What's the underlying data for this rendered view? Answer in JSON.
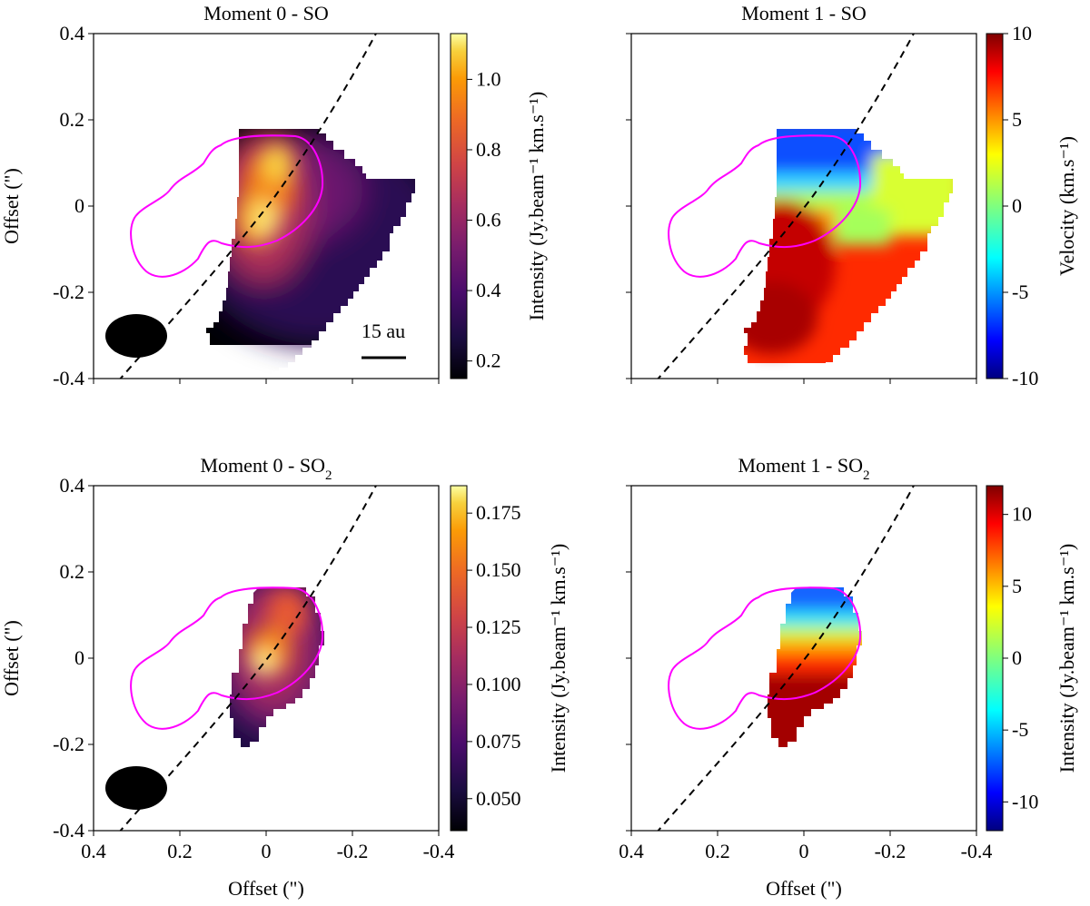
{
  "chart_data": [
    {
      "type": "heatmap",
      "title": "Moment 0 - SO",
      "xlabel": "",
      "ylabel": "Offset (\")",
      "xlim": [
        0.4,
        -0.4
      ],
      "ylim": [
        -0.4,
        0.4
      ],
      "yticks": [
        "-0.4",
        "-0.2",
        "0",
        "0.2",
        "0.4"
      ],
      "colormap": "inferno",
      "colorbar": {
        "label": "Intensity (Jy.beam⁻¹ km.s⁻¹)",
        "range": [
          0.15,
          1.13
        ],
        "ticks": [
          "0.2",
          "0.4",
          "0.6",
          "0.8",
          "1.0"
        ],
        "tick_values": [
          0.2,
          0.4,
          0.6,
          0.8,
          1.0
        ]
      },
      "emission": {
        "peaks": [
          {
            "x": -0.04,
            "y": 0.07,
            "value": 1.12
          },
          {
            "x": 0.04,
            "y": -0.05,
            "value": 1.05
          }
        ],
        "extent_x": [
          0.2,
          -0.34
        ],
        "extent_y": [
          -0.29,
          0.18
        ]
      },
      "beam": {
        "x": 0.3,
        "y": -0.3
      },
      "scale_bar": "15 au",
      "contour_color": "#ff00ff",
      "has_dashed_curve": true
    },
    {
      "type": "heatmap",
      "title": "Moment 1 - SO",
      "xlabel": "",
      "ylabel": "",
      "xlim": [
        0.4,
        -0.4
      ],
      "ylim": [
        -0.4,
        0.4
      ],
      "colormap": "jet",
      "colorbar": {
        "label": "Velocity (km.s⁻¹)",
        "range": [
          -10,
          10
        ],
        "ticks": [
          "-10",
          "-5",
          "0",
          "5",
          "10"
        ],
        "tick_values": [
          -10,
          -5,
          0,
          5,
          10
        ]
      },
      "velocity": {
        "north_value": -10,
        "south_value": 10,
        "east_limb_value": 2,
        "extent_x": [
          0.2,
          -0.34
        ],
        "extent_y": [
          -0.29,
          0.18
        ]
      },
      "contour_color": "#ff00ff",
      "has_dashed_curve": true
    },
    {
      "type": "heatmap",
      "title": "Moment 0 - SO2",
      "xlabel": "Offset (\")",
      "ylabel": "Offset (\")",
      "xlim": [
        0.4,
        -0.4
      ],
      "ylim": [
        -0.4,
        0.4
      ],
      "xticks": [
        "0.4",
        "0.2",
        "0",
        "-0.2",
        "-0.4"
      ],
      "yticks": [
        "-0.4",
        "-0.2",
        "0",
        "0.2",
        "0.4"
      ],
      "colormap": "inferno",
      "colorbar": {
        "label": "Intensity (Jy.beam⁻¹ km.s⁻¹)",
        "range": [
          0.036,
          0.187
        ],
        "ticks": [
          "0.050",
          "0.075",
          "0.100",
          "0.125",
          "0.150",
          "0.175"
        ],
        "tick_values": [
          0.05,
          0.075,
          0.1,
          0.125,
          0.15,
          0.175
        ]
      },
      "emission": {
        "peaks": [
          {
            "x": 0.0,
            "y": -0.05,
            "value": 0.185
          },
          {
            "x": -0.03,
            "y": 0.08,
            "value": 0.15
          }
        ],
        "extent_x": [
          0.11,
          -0.13
        ],
        "extent_y": [
          -0.18,
          0.15
        ]
      },
      "beam": {
        "x": 0.3,
        "y": -0.3
      },
      "contour_color": "#ff00ff",
      "has_dashed_curve": true
    },
    {
      "type": "heatmap",
      "title": "Moment 1 - SO2",
      "xlabel": "Offset (\")",
      "ylabel": "",
      "xlim": [
        0.4,
        -0.4
      ],
      "ylim": [
        -0.4,
        0.4
      ],
      "xticks": [
        "0.4",
        "0.2",
        "0",
        "-0.2",
        "-0.4"
      ],
      "colormap": "jet",
      "colorbar": {
        "label": "Intensity (Jy.beam⁻¹ km.s⁻¹)",
        "range": [
          -12,
          12
        ],
        "ticks": [
          "-10",
          "-5",
          "0",
          "5",
          "10"
        ],
        "tick_values": [
          -10,
          -5,
          0,
          5,
          10
        ]
      },
      "velocity": {
        "north_value": -10,
        "south_value": 12,
        "extent_x": [
          0.1,
          -0.13
        ],
        "extent_y": [
          -0.18,
          0.15
        ]
      },
      "contour_color": "#ff00ff",
      "has_dashed_curve": true
    }
  ]
}
